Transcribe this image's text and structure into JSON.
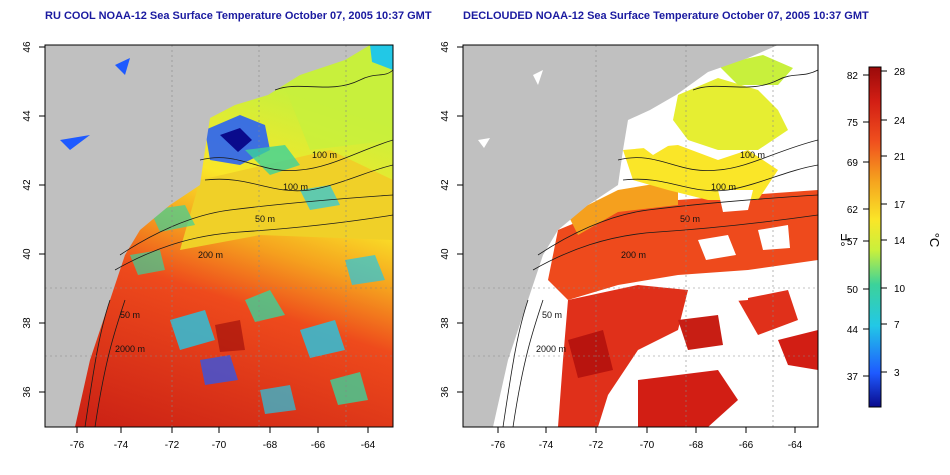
{
  "maps": [
    {
      "title": "RU COOL NOAA-12 Sea Surface Temperature October 07, 2005 10:37 GMT",
      "variant": "raw",
      "contours": [
        "100 m",
        "100 m",
        "50 m",
        "200 m",
        "50 m",
        "2000 m"
      ]
    },
    {
      "title": "DECLOUDED NOAA-12 Sea Surface Temperature October 07, 2005 10:37 GMT",
      "variant": "declouded",
      "contours": [
        "100 m",
        "100 m",
        "50 m",
        "200 m",
        "50 m",
        "2000 m"
      ]
    }
  ],
  "axes": {
    "x_ticks": [
      "-76",
      "-74",
      "-72",
      "-70",
      "-68",
      "-66",
      "-64"
    ],
    "y_ticks": [
      "36",
      "38",
      "40",
      "42",
      "44",
      "46"
    ]
  },
  "colorbar": {
    "label_f": "°F",
    "label_c": "°C",
    "f_ticks": [
      "82",
      "75",
      "69",
      "62",
      "57",
      "50",
      "44",
      "37"
    ],
    "c_ticks": [
      "28",
      "24",
      "21",
      "17",
      "14",
      "10",
      "7",
      "3"
    ],
    "colors": [
      "#0a0a8c",
      "#1e5aff",
      "#22c8e6",
      "#3cd29a",
      "#c8f03c",
      "#fae628",
      "#f5a01e",
      "#f0501e",
      "#d21e14",
      "#9a0a0a"
    ]
  }
}
